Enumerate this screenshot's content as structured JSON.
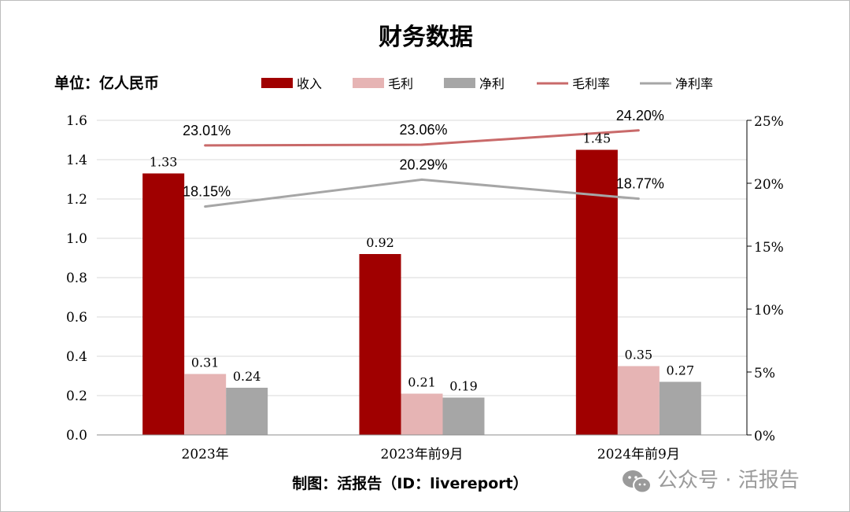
{
  "chart_data": {
    "type": "bar",
    "title": "财务数据",
    "unit_label": "单位：亿人民币",
    "categories": [
      "2023年",
      "2023年前9月",
      "2024年前9月"
    ],
    "series": [
      {
        "name": "收入",
        "type": "bar",
        "color": "#a00000",
        "values": [
          1.33,
          0.92,
          1.45
        ],
        "labels": [
          "1.33",
          "0.92",
          "1.45"
        ]
      },
      {
        "name": "毛利",
        "type": "bar",
        "color": "#e6b4b4",
        "values": [
          0.31,
          0.21,
          0.35
        ],
        "labels": [
          "0.31",
          "0.21",
          "0.35"
        ]
      },
      {
        "name": "净利",
        "type": "bar",
        "color": "#a6a6a6",
        "values": [
          0.24,
          0.19,
          0.27
        ],
        "labels": [
          "0.24",
          "0.19",
          "0.27"
        ]
      },
      {
        "name": "毛利率",
        "type": "line",
        "axis": "right",
        "color": "#c96a6a",
        "values": [
          23.01,
          23.06,
          24.2
        ],
        "labels": [
          "23.01%",
          "23.06%",
          "24.20%"
        ]
      },
      {
        "name": "净利率",
        "type": "line",
        "axis": "right",
        "color": "#a6a6a6",
        "values": [
          18.15,
          20.29,
          18.77
        ],
        "labels": [
          "18.15%",
          "20.29%",
          "18.77%"
        ]
      }
    ],
    "left_axis": {
      "min": 0,
      "max": 1.6,
      "ticks": [
        "0.0",
        "0.2",
        "0.4",
        "0.6",
        "0.8",
        "1.0",
        "1.2",
        "1.4",
        "1.6"
      ]
    },
    "right_axis": {
      "min": 0,
      "max": 25,
      "ticks": [
        "0%",
        "5%",
        "10%",
        "15%",
        "20%",
        "25%"
      ]
    },
    "grid": true,
    "legend_position": "top"
  },
  "footer": "制图：活报告（ID：livereport）",
  "watermark": {
    "icon": "wechat-icon",
    "text": "公众号 · 活报告"
  }
}
